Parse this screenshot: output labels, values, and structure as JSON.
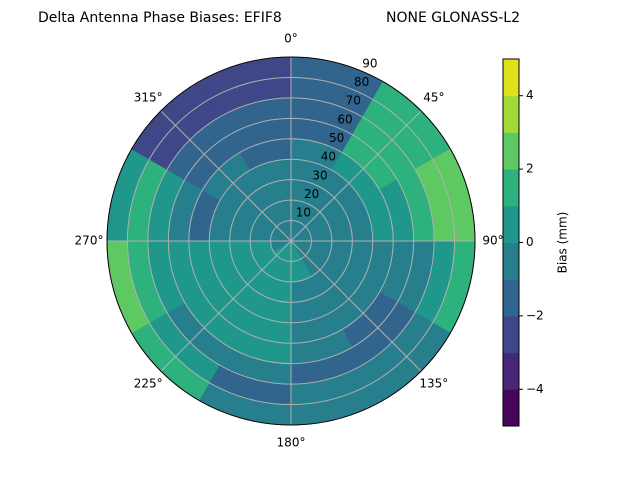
{
  "chart_data": {
    "type": "polar_contour",
    "title": "Delta Antenna Phase Biases: EFIF8",
    "subtitle": "NONE GLONASS-L2",
    "azimuth_edges": [
      0,
      30,
      60,
      90,
      120,
      150,
      180,
      210,
      240,
      270,
      300,
      330,
      360
    ],
    "zenith_edges": [
      0,
      10,
      20,
      30,
      40,
      50,
      60,
      70,
      80,
      90
    ],
    "values": [
      [
        -0.5,
        -0.5,
        -0.5,
        -0.5,
        -0.5,
        -1.5,
        -1.5,
        -1.5,
        -1.5
      ],
      [
        -0.5,
        -0.5,
        -0.5,
        -0.5,
        0.5,
        1.5,
        1.5,
        1.5,
        1.5
      ],
      [
        -0.5,
        -0.5,
        -0.5,
        -0.5,
        0.5,
        0.5,
        1.5,
        2.5,
        2.5
      ],
      [
        -0.5,
        -0.5,
        -0.5,
        -0.5,
        -0.5,
        -0.5,
        -0.5,
        0.5,
        1.5
      ],
      [
        -0.5,
        -0.5,
        -0.5,
        -0.5,
        -0.5,
        -1.5,
        -1.5,
        -0.5,
        -0.5
      ],
      [
        0.5,
        0.5,
        -0.5,
        -0.5,
        -0.5,
        -0.5,
        -1.5,
        -0.5,
        -0.5
      ],
      [
        0.5,
        0.5,
        0.5,
        0.5,
        0.5,
        0.5,
        -0.5,
        -1.5,
        -0.5
      ],
      [
        0.5,
        0.5,
        0.5,
        0.5,
        0.5,
        0.5,
        -0.5,
        0.5,
        1.5
      ],
      [
        -0.5,
        0.5,
        0.5,
        0.5,
        0.5,
        0.5,
        0.5,
        1.5,
        2.5
      ],
      [
        -0.5,
        -0.5,
        -0.5,
        -0.5,
        -1.5,
        -0.5,
        0.5,
        1.5,
        0.5
      ],
      [
        -0.5,
        -0.5,
        -0.5,
        -0.5,
        -0.5,
        -1.5,
        -1.5,
        -2.5,
        -2.5
      ],
      [
        -0.5,
        -0.5,
        -0.5,
        -0.5,
        -1.5,
        -1.5,
        -1.5,
        -2.5,
        -2.5
      ]
    ],
    "rlim": [
      0,
      90
    ],
    "rticks": [
      10,
      20,
      30,
      40,
      50,
      60,
      70,
      80,
      90
    ],
    "thetaticks": [
      {
        "value": 0,
        "label": "0°"
      },
      {
        "value": 45,
        "label": "45°"
      },
      {
        "value": 90,
        "label": "90°"
      },
      {
        "value": 135,
        "label": "135°"
      },
      {
        "value": 180,
        "label": "180°"
      },
      {
        "value": 225,
        "label": "225°"
      },
      {
        "value": 270,
        "label": "270°"
      },
      {
        "value": 315,
        "label": "315°"
      }
    ],
    "grid": true,
    "levels": [
      -5,
      -4,
      -3,
      -2,
      -1,
      0,
      1,
      2,
      3,
      4,
      5
    ],
    "colors": [
      "#450559",
      "#482677",
      "#3f4788",
      "#32658e",
      "#277f8e",
      "#1f988b",
      "#2db27d",
      "#5ec962",
      "#a2da37",
      "#dde318"
    ],
    "colorbar_label": "Bias (mm)",
    "colorbar_ticks": [
      {
        "value": -4,
        "label": "−4"
      },
      {
        "value": -2,
        "label": "−2"
      },
      0,
      2,
      4
    ]
  }
}
